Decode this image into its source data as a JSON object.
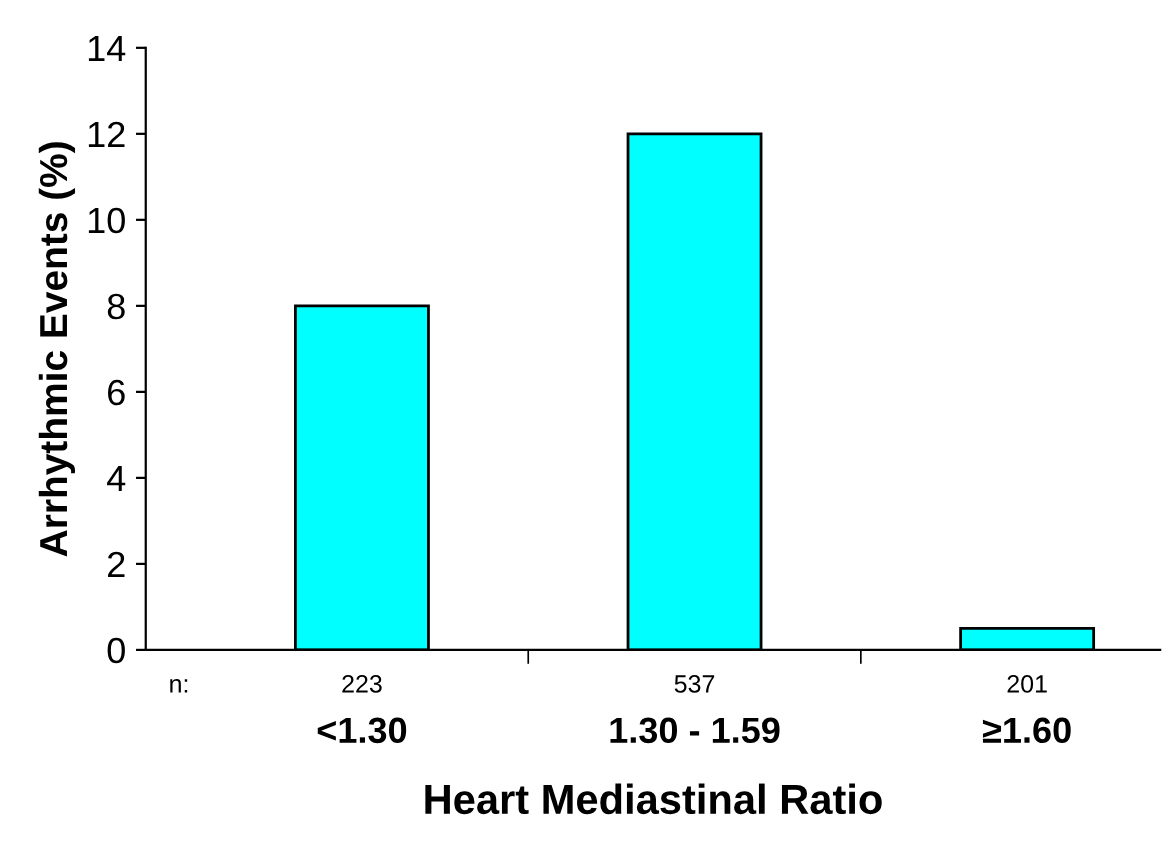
{
  "chart_data": {
    "type": "bar",
    "xlabel": "Heart Mediastinal Ratio",
    "ylabel": "Arrhythmic Events (%)",
    "categories": [
      "<1.30",
      "1.30 - 1.59",
      "≥1.60"
    ],
    "values": [
      8,
      12,
      0.5
    ],
    "color": "#00ffff",
    "ylim": [
      0,
      14
    ],
    "yticks": [
      0,
      2,
      4,
      6,
      8,
      10,
      12,
      14
    ],
    "grid": false,
    "annotations": [
      "n:",
      "223",
      "537",
      "201"
    ]
  }
}
